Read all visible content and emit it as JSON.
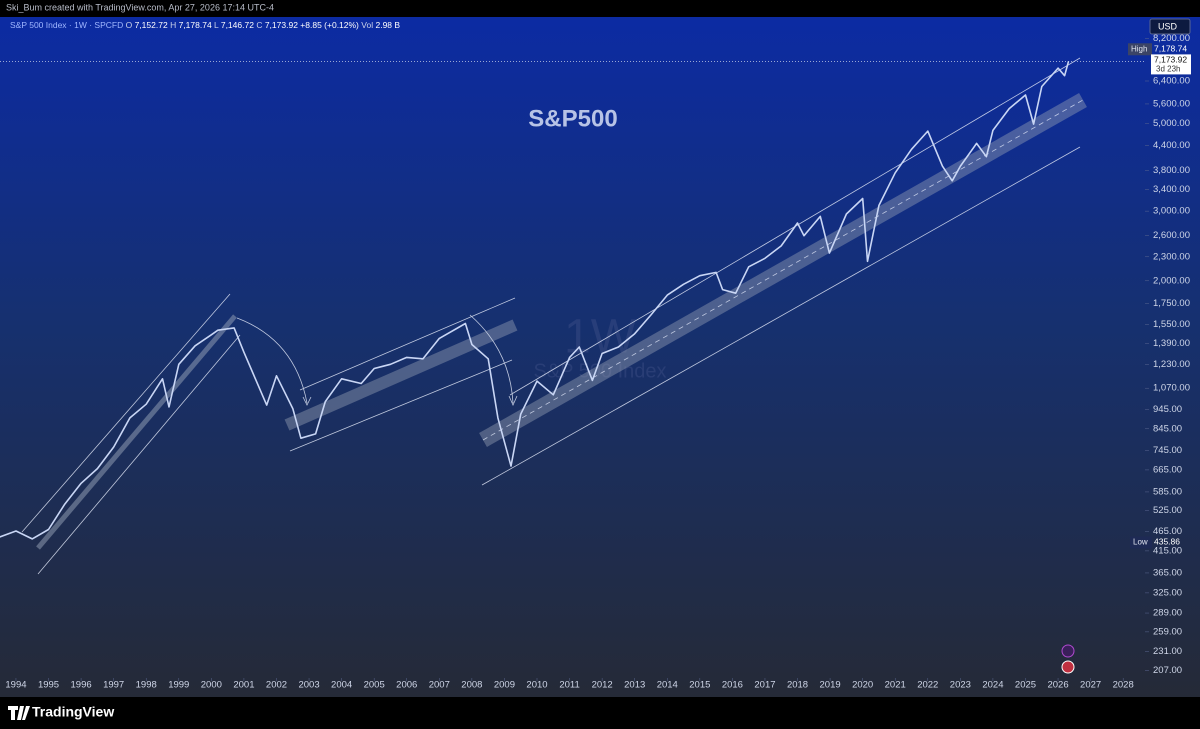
{
  "header": "Ski_Bum created with TradingView.com, Apr 27, 2026 17:14 UTC-4",
  "symbol": "S&P 500 Index · 1W · SPCFD",
  "ohlc": [
    {
      "key": "O",
      "price": {
        "value": 7152.72,
        "label": "7,152.72"
      }
    },
    {
      "key": "H",
      "price": {
        "value": 7178.74,
        "label": "7,178.74"
      }
    },
    {
      "key": "L",
      "price": {
        "value": 7146.72,
        "label": "7,146.72"
      }
    },
    {
      "key": "C",
      "price": {
        "value": 7173.92,
        "label": "7,173.92"
      }
    }
  ],
  "change": "+8.85 (+0.12%)",
  "volume_key": "Vol",
  "volume": "2.98 B",
  "watermark_interval": "1W",
  "watermark_symbol": "S&P 500 Index",
  "brand": "TradingView",
  "chart_data": {
    "type": "line",
    "title": "S&P500",
    "log_scale": true,
    "currency": "USD",
    "high_key": "High",
    "high": {
      "value": 7178.74,
      "label": "7,178.74"
    },
    "last": {
      "value": 7173.92,
      "label": "7,173.92"
    },
    "countdown": "3d 23h",
    "low_key": "Low",
    "low": 435.86,
    "xlim": [
      1993.51,
      2028.67
    ],
    "ylim": [
      198,
      9290
    ],
    "xticks": [
      1994,
      1995,
      1996,
      1997,
      1998,
      1999,
      2000,
      2001,
      2002,
      2003,
      2004,
      2005,
      2006,
      2007,
      2008,
      2009,
      2010,
      2011,
      2012,
      2013,
      2014,
      2015,
      2016,
      2017,
      2018,
      2019,
      2020,
      2021,
      2022,
      2023,
      2024,
      2025,
      2026,
      2027,
      2028
    ],
    "yticks": [
      {
        "value": 207,
        "label": "207.00"
      },
      {
        "value": 231,
        "label": "231.00"
      },
      {
        "value": 259,
        "label": "259.00"
      },
      {
        "value": 289,
        "label": "289.00"
      },
      {
        "value": 325,
        "label": "325.00"
      },
      {
        "value": 365,
        "label": "365.00"
      },
      {
        "value": 415,
        "label": "415.00"
      },
      {
        "value": 465,
        "label": "465.00"
      },
      {
        "value": 525,
        "label": "525.00"
      },
      {
        "value": 585,
        "label": "585.00"
      },
      {
        "value": 665,
        "label": "665.00"
      },
      {
        "value": 745,
        "label": "745.00"
      },
      {
        "value": 845,
        "label": "845.00"
      },
      {
        "value": 945,
        "label": "945.00"
      },
      {
        "value": 1070,
        "label": "1,070.00"
      },
      {
        "value": 1230,
        "label": "1,230.00"
      },
      {
        "value": 1390,
        "label": "1,390.00"
      },
      {
        "value": 1550,
        "label": "1,550.00"
      },
      {
        "value": 1750,
        "label": "1,750.00"
      },
      {
        "value": 2000,
        "label": "2,000.00"
      },
      {
        "value": 2300,
        "label": "2,300.00"
      },
      {
        "value": 2600,
        "label": "2,600.00"
      },
      {
        "value": 3000,
        "label": "3,000.00"
      },
      {
        "value": 3400,
        "label": "3,400.00"
      },
      {
        "value": 3800,
        "label": "3,800.00"
      },
      {
        "value": 4400,
        "label": "4,400.00"
      },
      {
        "value": 5000,
        "label": "5,000.00"
      },
      {
        "value": 5600,
        "label": "5,600.00"
      },
      {
        "value": 6400,
        "label": "6,400.00"
      },
      {
        "value": 8200,
        "label": "8,200.00"
      }
    ],
    "series": [
      {
        "name": "S&P 500 Index",
        "color": "#c9d6f5",
        "x": [
          1993.5,
          1994.0,
          1994.5,
          1995.0,
          1995.5,
          1996.0,
          1996.5,
          1997.0,
          1997.5,
          1998.0,
          1998.5,
          1998.7,
          1999.0,
          1999.5,
          2000.0,
          2000.2,
          2000.7,
          2001.0,
          2001.7,
          2002.0,
          2002.5,
          2002.75,
          2003.2,
          2003.5,
          2004.0,
          2004.6,
          2005.0,
          2005.5,
          2006.0,
          2006.5,
          2007.0,
          2007.8,
          2008.0,
          2008.5,
          2008.8,
          2009.2,
          2009.5,
          2010.0,
          2010.5,
          2011.0,
          2011.3,
          2011.7,
          2012.0,
          2012.5,
          2013.0,
          2013.5,
          2014.0,
          2014.5,
          2015.0,
          2015.5,
          2015.7,
          2016.1,
          2016.5,
          2017.0,
          2017.5,
          2018.0,
          2018.2,
          2018.7,
          2018.98,
          2019.5,
          2020.0,
          2020.15,
          2020.5,
          2021.0,
          2021.5,
          2022.0,
          2022.45,
          2022.75,
          2023.0,
          2023.5,
          2023.8,
          2024.0,
          2024.5,
          2025.0,
          2025.25,
          2025.5,
          2026.0,
          2026.2,
          2026.32
        ],
        "values": [
          450,
          466,
          445,
          470,
          545,
          615,
          670,
          760,
          900,
          975,
          1130,
          960,
          1230,
          1370,
          1460,
          1500,
          1520,
          1320,
          970,
          1150,
          950,
          800,
          820,
          990,
          1130,
          1100,
          1200,
          1230,
          1280,
          1270,
          1430,
          1560,
          1380,
          1270,
          900,
          680,
          920,
          1115,
          1030,
          1280,
          1360,
          1120,
          1310,
          1360,
          1470,
          1640,
          1840,
          1960,
          2060,
          2100,
          1900,
          1860,
          2170,
          2280,
          2450,
          2800,
          2600,
          2910,
          2350,
          2950,
          3230,
          2240,
          3100,
          3750,
          4300,
          4780,
          3900,
          3580,
          3900,
          4450,
          4120,
          4800,
          5450,
          5900,
          4980,
          6200,
          6900,
          6600,
          7173.92
        ]
      }
    ]
  }
}
